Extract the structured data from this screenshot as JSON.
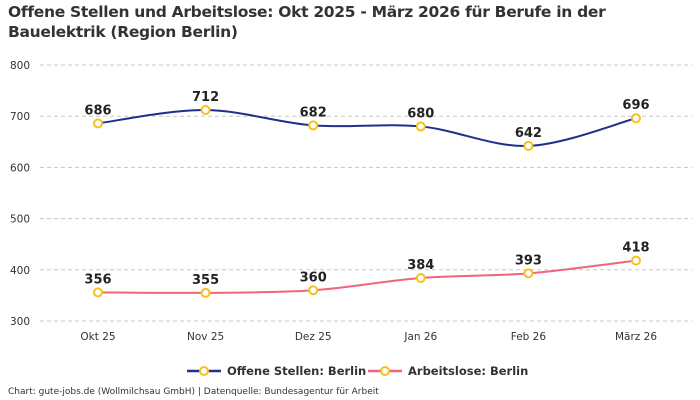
{
  "chart_data": {
    "type": "line",
    "title": "Offene Stellen und Arbeitslose: Okt 2025 - März 2026 für Berufe in der Bauelektrik (Region Berlin)",
    "categories": [
      "Okt 25",
      "Nov 25",
      "Dez 25",
      "Jan 26",
      "Feb 26",
      "März 26"
    ],
    "series": [
      {
        "name": "Offene Stellen: Berlin",
        "values": [
          686,
          712,
          682,
          680,
          642,
          696
        ],
        "color": "#1f2f8c"
      },
      {
        "name": "Arbeitslose: Berlin",
        "values": [
          356,
          355,
          360,
          384,
          393,
          418
        ],
        "color": "#f2637e"
      }
    ],
    "marker_color": "#f5c21b",
    "ylim": [
      300,
      800
    ],
    "yticks": [
      300,
      400,
      500,
      600,
      700,
      800
    ],
    "grid": true,
    "legend": "bottom"
  },
  "footer": "Chart: gute-jobs.de (Wollmilchsau GmbH) | Datenquelle: Bundesagentur für Arbeit"
}
